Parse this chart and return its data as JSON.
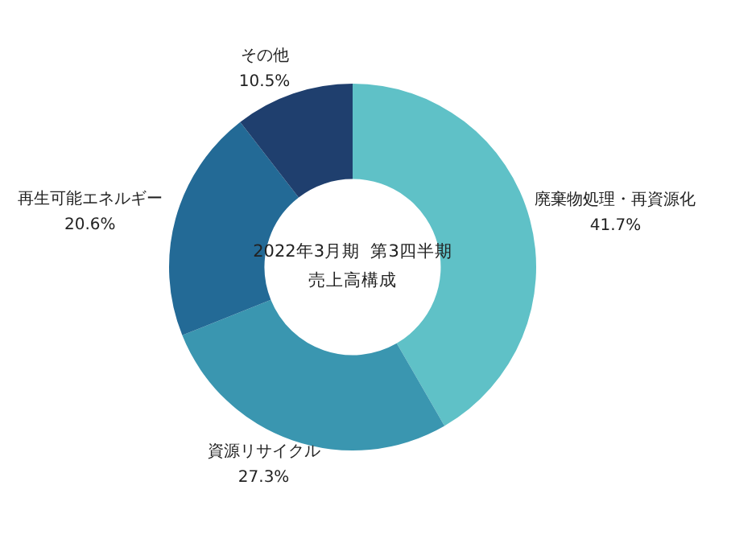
{
  "chart_data": {
    "type": "donut",
    "title": "2022年3月期  第3四半期",
    "subtitle": "売上高構成",
    "categories": [
      "廃棄物処理・再資源化",
      "資源リサイクル",
      "再生可能エネルギー",
      "その他"
    ],
    "values": [
      41.7,
      27.3,
      20.6,
      10.5
    ],
    "value_labels": [
      "41.7%",
      "27.3%",
      "20.6%",
      "10.5%"
    ],
    "colors": [
      "#5fc1c7",
      "#3a96b0",
      "#236a96",
      "#1f3f6e"
    ],
    "legend": false
  }
}
